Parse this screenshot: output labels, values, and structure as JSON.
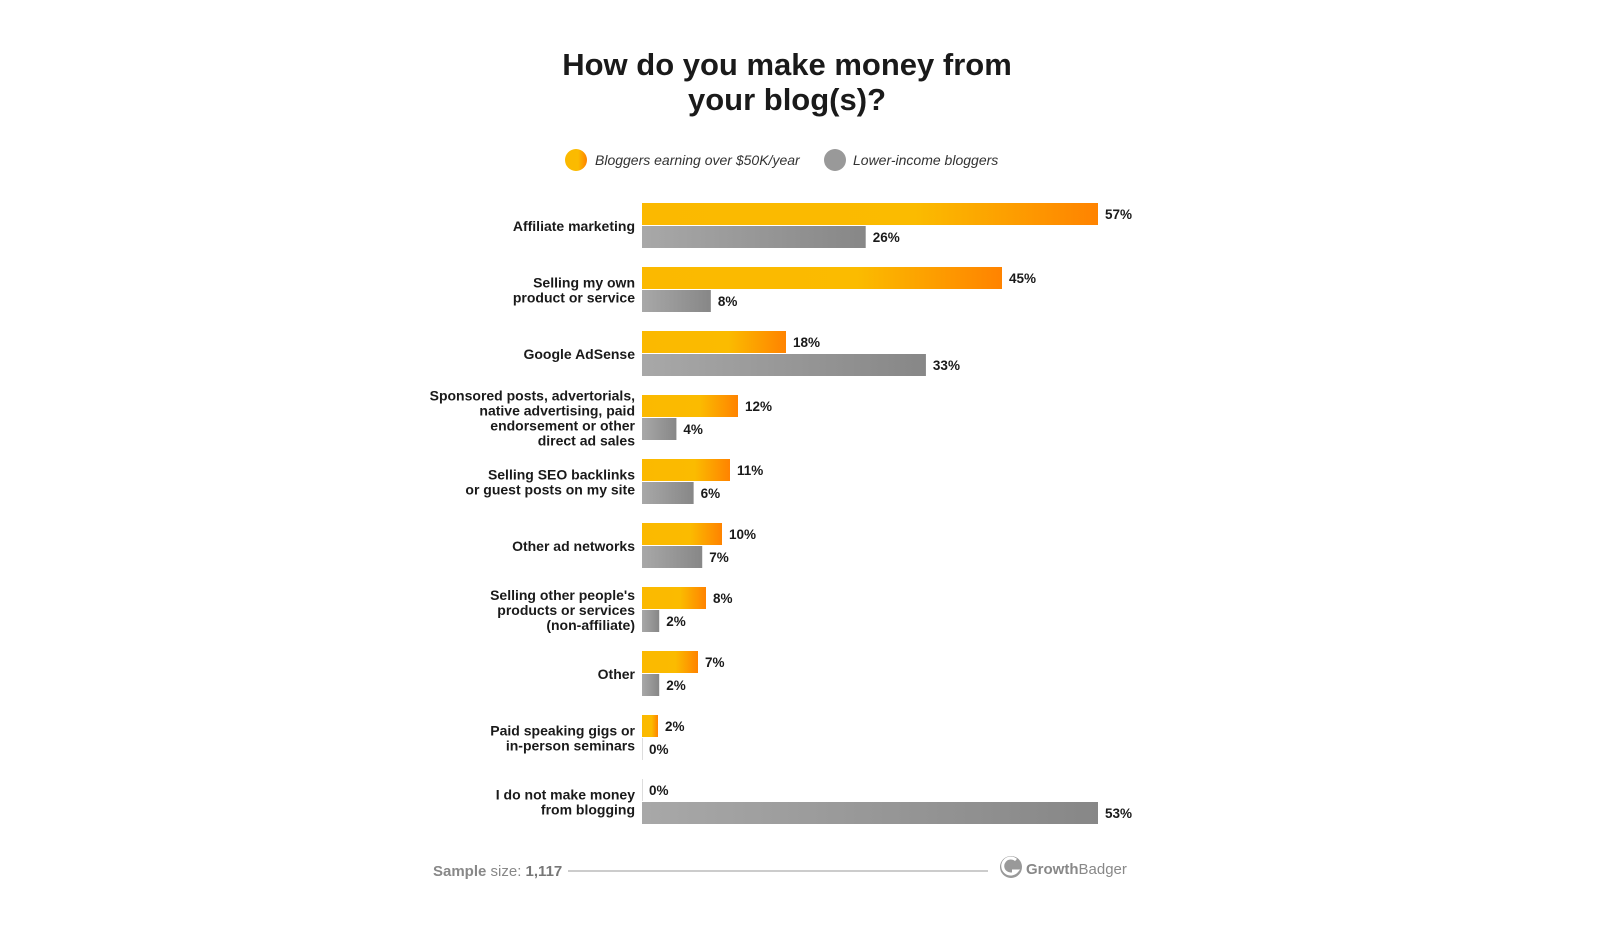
{
  "chart_data": {
    "type": "bar",
    "orientation": "horizontal",
    "title": "How do you make money from your blog(s)?",
    "title_lines": [
      "How do you make money from",
      "your blog(s)?"
    ],
    "legend_placement": "top",
    "grid": false,
    "categories": [
      [
        "Affiliate marketing"
      ],
      [
        "Selling my own",
        "product or service"
      ],
      [
        "Google AdSense"
      ],
      [
        "Sponsored posts, advertorials,",
        "native advertising, paid",
        "endorsement or other",
        "direct ad sales"
      ],
      [
        "Selling SEO backlinks",
        "or guest posts on my site"
      ],
      [
        "Other ad networks"
      ],
      [
        "Selling other people's",
        "products or services",
        "(non-affiliate)"
      ],
      [
        "Other"
      ],
      [
        "Paid speaking gigs or",
        "in-person seminars"
      ],
      [
        "I do not make money",
        "from blogging"
      ]
    ],
    "series": [
      {
        "name": "Bloggers earning over $50K/year",
        "color": "#fbb900",
        "color_end": "#ff8300",
        "values": [
          57,
          45,
          18,
          12,
          11,
          10,
          8,
          7,
          2,
          0
        ]
      },
      {
        "name": "Lower-income bloggers",
        "color": "#a3a3a3",
        "color_end": "#888888",
        "values": [
          26,
          8,
          33,
          4,
          6,
          7,
          2,
          2,
          0,
          53
        ]
      }
    ],
    "value_suffix": "%"
  },
  "footer": {
    "sample_label": "Sample",
    "size_label": " size: ",
    "sample_value": "1,117",
    "brand_bold": "Growth",
    "brand_rest": "Badger"
  }
}
